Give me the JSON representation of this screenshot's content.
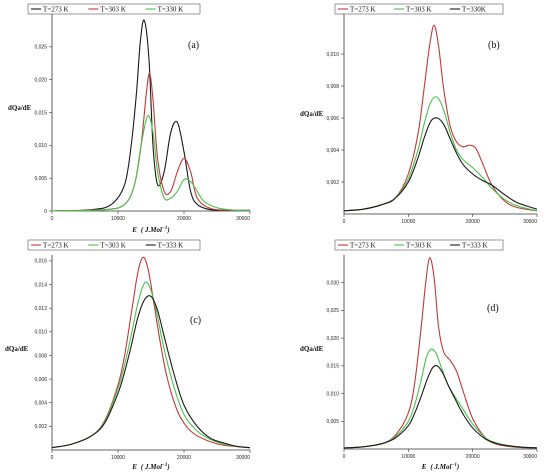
{
  "colors": {
    "red": "#c0393b",
    "green": "#4cc04c",
    "black": "#1a1a1a"
  },
  "chart_data": [
    {
      "type": "line",
      "panel_label": "(a)",
      "ylabel": "dQa/dE",
      "xlabel_main": "E",
      "xlabel_unit": "( J.Mol",
      "xlabel_exp": "−1",
      "xlabel_close": ")",
      "xlim": [
        0,
        30000
      ],
      "ylim": [
        0,
        0.03
      ],
      "xticks": [
        0,
        10000,
        20000,
        30000
      ],
      "yticks": [
        0,
        0.005,
        0.01,
        0.015,
        0.02,
        0.025
      ],
      "xtick_labels": [
        "0",
        "10000",
        "20000",
        "30000"
      ],
      "ytick_labels": [
        "0",
        "0,005",
        "0,010",
        "0,015",
        "0,020",
        "0,025"
      ],
      "legend": [
        "T=273 K",
        "T=303 K",
        "T=330 K"
      ],
      "series": [
        {
          "name": "T=273 K",
          "color": "black",
          "x": [
            0,
            6000,
            9000,
            11000,
            12000,
            12800,
            13400,
            14000,
            14700,
            15300,
            16000,
            17000,
            18000,
            19000,
            20000,
            21000,
            22000,
            24000,
            27000,
            30000
          ],
          "y": [
            0,
            0.0002,
            0.001,
            0.004,
            0.01,
            0.018,
            0.026,
            0.029,
            0.023,
            0.01,
            0.004,
            0.006,
            0.012,
            0.0135,
            0.009,
            0.003,
            0.001,
            0.0002,
            0.0001,
            0.0001
          ]
        },
        {
          "name": "T=303 K",
          "color": "red",
          "x": [
            0,
            8000,
            11000,
            12500,
            13500,
            14300,
            14800,
            15300,
            16000,
            17000,
            18000,
            19000,
            20000,
            21000,
            22000,
            24000,
            27000,
            30000
          ],
          "y": [
            0,
            0.0002,
            0.001,
            0.004,
            0.01,
            0.018,
            0.021,
            0.017,
            0.008,
            0.003,
            0.003,
            0.006,
            0.008,
            0.006,
            0.002,
            0.0004,
            0.0001,
            0.0001
          ]
        },
        {
          "name": "T=330 K",
          "color": "green",
          "x": [
            0,
            8000,
            11000,
            12500,
            13500,
            14500,
            15300,
            16000,
            17000,
            18000,
            19000,
            20000,
            21000,
            22000,
            23000,
            25000,
            28000,
            30000
          ],
          "y": [
            0,
            0.0002,
            0.001,
            0.004,
            0.01,
            0.0145,
            0.012,
            0.006,
            0.002,
            0.002,
            0.003,
            0.0048,
            0.0045,
            0.003,
            0.0015,
            0.0005,
            0.0001,
            0.0001
          ]
        }
      ]
    },
    {
      "type": "line",
      "panel_label": "(b)",
      "ylabel": "dQa/dE",
      "xlabel_main": "",
      "xlabel_unit": "",
      "xlabel_exp": "",
      "xlabel_close": "",
      "xlim": [
        0,
        30000
      ],
      "ylim": [
        0,
        0.0125
      ],
      "xticks": [
        0,
        10000,
        20000,
        30000
      ],
      "yticks": [
        0.002,
        0.004,
        0.006,
        0.008,
        0.01
      ],
      "xtick_labels": [
        "0",
        "10000",
        "20000",
        "30000"
      ],
      "ytick_labels": [
        "0,002",
        "0,004",
        "0,006",
        "0,008",
        "0,010"
      ],
      "legend": [
        "T=273 K",
        "T=303 K",
        "T=330K"
      ],
      "series": [
        {
          "name": "T=273 K",
          "color": "red",
          "x": [
            0,
            3000,
            6000,
            8000,
            10000,
            11500,
            12500,
            13300,
            14000,
            14700,
            15500,
            16500,
            17500,
            18500,
            19500,
            20500,
            21500,
            23000,
            25000,
            27000,
            30000
          ],
          "y": [
            0.0002,
            0.0003,
            0.0006,
            0.001,
            0.0025,
            0.005,
            0.008,
            0.0105,
            0.0118,
            0.0105,
            0.0078,
            0.0055,
            0.0045,
            0.0042,
            0.0043,
            0.0041,
            0.0032,
            0.0018,
            0.0008,
            0.0004,
            0.0002
          ]
        },
        {
          "name": "T=303 K",
          "color": "green",
          "x": [
            0,
            3000,
            6000,
            8000,
            10000,
            11500,
            12500,
            13500,
            14500,
            15500,
            16500,
            17500,
            18500,
            20000,
            21500,
            23000,
            25000,
            27000,
            30000
          ],
          "y": [
            0.0002,
            0.0003,
            0.0006,
            0.001,
            0.0022,
            0.004,
            0.0057,
            0.007,
            0.0073,
            0.0065,
            0.0051,
            0.004,
            0.0034,
            0.0029,
            0.0023,
            0.0016,
            0.0009,
            0.0005,
            0.0002
          ]
        },
        {
          "name": "T=330K",
          "color": "black",
          "x": [
            0,
            3000,
            6000,
            8000,
            10000,
            11500,
            12500,
            13500,
            14500,
            15500,
            16500,
            17500,
            18500,
            20000,
            21500,
            23000,
            25000,
            27000,
            30000
          ],
          "y": [
            0.0002,
            0.0003,
            0.0006,
            0.001,
            0.002,
            0.0035,
            0.0048,
            0.0058,
            0.006,
            0.0056,
            0.0047,
            0.0038,
            0.0031,
            0.0025,
            0.0021,
            0.0018,
            0.0012,
            0.0007,
            0.0003
          ]
        }
      ]
    },
    {
      "type": "line",
      "panel_label": "(c)",
      "ylabel": "dQa/dE",
      "xlabel_main": "E",
      "xlabel_unit": "( J.Mol",
      "xlabel_exp": "−1",
      "xlabel_close": ")",
      "xlim": [
        0,
        30000
      ],
      "ylim": [
        0,
        0.0165
      ],
      "xticks": [
        0,
        10000,
        20000,
        30000
      ],
      "yticks": [
        0.002,
        0.004,
        0.006,
        0.008,
        0.01,
        0.012,
        0.014,
        0.016
      ],
      "xtick_labels": [
        "0",
        "10000",
        "20000",
        "30000"
      ],
      "ytick_labels": [
        "0,002",
        "0,004",
        "0,006",
        "0,008",
        "0,010",
        "0,012",
        "0,014",
        "0,016"
      ],
      "legend": [
        "T=273 K",
        "T=303 K",
        "T=333 K"
      ],
      "series": [
        {
          "name": "T=273 K",
          "color": "red",
          "x": [
            0,
            3000,
            6000,
            8000,
            10000,
            11000,
            12000,
            13000,
            13800,
            14600,
            15500,
            16500,
            17500,
            19000,
            20500,
            22000,
            24000,
            26000,
            28000,
            30000
          ],
          "y": [
            0.0002,
            0.0005,
            0.0012,
            0.0025,
            0.0055,
            0.008,
            0.0115,
            0.015,
            0.0163,
            0.0152,
            0.0122,
            0.0088,
            0.006,
            0.0033,
            0.0019,
            0.0012,
            0.0007,
            0.0004,
            0.0003,
            0.0002
          ]
        },
        {
          "name": "T=303 K",
          "color": "green",
          "x": [
            0,
            3000,
            6000,
            8000,
            10000,
            11000,
            12000,
            13000,
            14000,
            14800,
            15800,
            17000,
            18500,
            20000,
            22000,
            24000,
            26000,
            28000,
            30000
          ],
          "y": [
            0.0002,
            0.0005,
            0.0012,
            0.0024,
            0.0052,
            0.0072,
            0.0097,
            0.0124,
            0.0141,
            0.0138,
            0.0118,
            0.0085,
            0.0053,
            0.003,
            0.0016,
            0.0009,
            0.0005,
            0.0003,
            0.0002
          ]
        },
        {
          "name": "T=333 K",
          "color": "black",
          "x": [
            0,
            3000,
            6000,
            8000,
            10000,
            11000,
            12000,
            13000,
            14000,
            15000,
            16000,
            17000,
            18500,
            20000,
            22000,
            24000,
            26000,
            28000,
            30000
          ],
          "y": [
            0.0002,
            0.0005,
            0.0012,
            0.0023,
            0.0048,
            0.0066,
            0.0088,
            0.0112,
            0.0127,
            0.013,
            0.0118,
            0.0096,
            0.0064,
            0.0038,
            0.002,
            0.001,
            0.0006,
            0.0003,
            0.0002
          ]
        }
      ]
    },
    {
      "type": "line",
      "panel_label": "(d)",
      "ylabel": "dQa/dE",
      "xlabel_main": "E",
      "xlabel_unit": "( J.Mol",
      "xlabel_exp": "−1",
      "xlabel_close": ")",
      "xlim": [
        0,
        30000
      ],
      "ylim": [
        0,
        0.035
      ],
      "xticks": [
        0,
        10000,
        20000,
        30000
      ],
      "yticks": [
        0.005,
        0.01,
        0.015,
        0.02,
        0.025,
        0.03
      ],
      "xtick_labels": [
        "0",
        "10000",
        "20000",
        "30000"
      ],
      "ytick_labels": [
        "0,005",
        "0,010",
        "0,015",
        "0,020",
        "0,025",
        "0,030"
      ],
      "legend": [
        "T=273 K",
        "T=303 K",
        "T=333 K"
      ],
      "series": [
        {
          "name": "T=273 K",
          "color": "red",
          "x": [
            0,
            3000,
            6000,
            8000,
            10000,
            11000,
            12000,
            12700,
            13300,
            14000,
            14700,
            15500,
            16500,
            17500,
            18500,
            20000,
            22000,
            24000,
            27000,
            30000
          ],
          "y": [
            0.0002,
            0.0004,
            0.001,
            0.0025,
            0.0065,
            0.012,
            0.022,
            0.03,
            0.0345,
            0.031,
            0.022,
            0.0175,
            0.016,
            0.014,
            0.0105,
            0.0055,
            0.002,
            0.0008,
            0.0003,
            0.0002
          ]
        },
        {
          "name": "T=303 K",
          "color": "green",
          "x": [
            0,
            3000,
            6000,
            8000,
            10000,
            11000,
            12000,
            12800,
            13500,
            14300,
            15200,
            16200,
            17500,
            18500,
            20000,
            22000,
            24000,
            27000,
            30000
          ],
          "y": [
            0.0002,
            0.0004,
            0.001,
            0.0022,
            0.005,
            0.008,
            0.0125,
            0.0165,
            0.018,
            0.0173,
            0.0145,
            0.0115,
            0.009,
            0.0072,
            0.0045,
            0.002,
            0.001,
            0.0004,
            0.0002
          ]
        },
        {
          "name": "T=333 K",
          "color": "black",
          "x": [
            0,
            3000,
            6000,
            8000,
            10000,
            11000,
            12000,
            13000,
            13800,
            14500,
            15300,
            16200,
            17500,
            18500,
            20000,
            22000,
            24000,
            27000,
            30000
          ],
          "y": [
            0.0002,
            0.0004,
            0.001,
            0.002,
            0.0042,
            0.0065,
            0.0095,
            0.0128,
            0.0147,
            0.015,
            0.0138,
            0.0115,
            0.0085,
            0.0063,
            0.0038,
            0.0018,
            0.0009,
            0.0004,
            0.0002
          ]
        }
      ]
    }
  ]
}
